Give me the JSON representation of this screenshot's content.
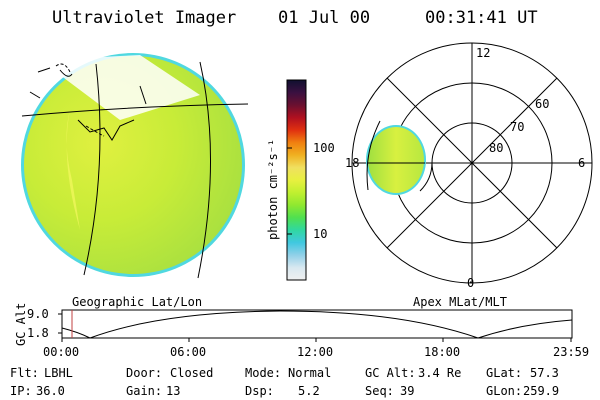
{
  "header": {
    "title": "Ultraviolet Imager",
    "date": "01 Jul 00",
    "time": "00:31:41 UT"
  },
  "colorbar": {
    "unit_label": "photon cm⁻²s⁻¹",
    "ticks": [
      "100",
      "10"
    ],
    "colors": [
      "#101030",
      "#3a1040",
      "#6a1030",
      "#b01020",
      "#e03010",
      "#f08010",
      "#f0b020",
      "#f0e060",
      "#e8f040",
      "#c0f030",
      "#90e830",
      "#50e050",
      "#30d8a0",
      "#40c8e0",
      "#90d0e8",
      "#d8e8f0",
      "#f0f0f0"
    ]
  },
  "left_panel": {
    "caption": "Geographic Lat/Lon"
  },
  "right_panel": {
    "caption": "Apex MLat/MLT",
    "mlt_labels": {
      "top": "12",
      "left": "18",
      "right": "6",
      "bottom": "0"
    },
    "lat_labels": [
      "60",
      "70",
      "80"
    ]
  },
  "altitude_plot": {
    "ylabel": "GC Alt",
    "y_ticks": [
      "9.0",
      "1.8"
    ],
    "x_ticks": [
      "00:00",
      "06:00",
      "12:00",
      "18:00",
      "23:59"
    ],
    "marker_color": "#c04040"
  },
  "info": {
    "flt_label": "Flt:",
    "flt_value": "LBHL",
    "ip_label": "IP:",
    "ip_value": "36.0",
    "door_label": "Door:",
    "door_value": "Closed",
    "gain_label": "Gain:",
    "gain_value": "13",
    "mode_label": "Mode:",
    "mode_value": "Normal",
    "dsp_label": "Dsp:",
    "dsp_value": "5.2",
    "gcalt_label": "GC Alt:",
    "gcalt_value": "3.4 Re",
    "seq_label": "Seq:",
    "seq_value": "39",
    "glat_label": "GLat:",
    "glat_value": "57.3",
    "glon_label": "GLon:",
    "glon_value": "259.9"
  }
}
